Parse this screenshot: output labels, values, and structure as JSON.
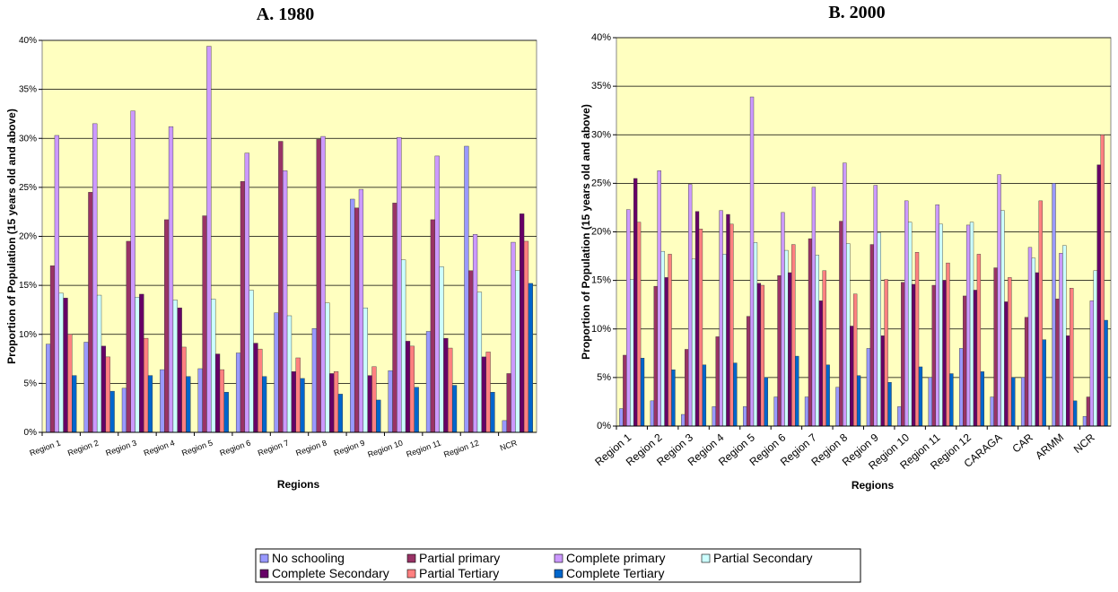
{
  "chart_data": [
    {
      "type": "bar",
      "title": "A. 1980",
      "x_label": "Regions",
      "y_label": "Proportion of Population (15 years old and above)",
      "categories": [
        "Region 1",
        "Region 2",
        "Region 3",
        "Region 4",
        "Region 5",
        "Region 6",
        "Region 7",
        "Region 8",
        "Region 9",
        "Region 10",
        "Region 11",
        "Region 12",
        "NCR"
      ],
      "ylim": [
        0,
        40
      ],
      "yticks": [
        {
          "value": 0,
          "label": "0%"
        },
        {
          "value": 5,
          "label": "5%"
        },
        {
          "value": 10,
          "label": "10%"
        },
        {
          "value": 15,
          "label": "15%"
        },
        {
          "value": 20,
          "label": "20%"
        },
        {
          "value": 25,
          "label": "25%"
        },
        {
          "value": 30,
          "label": "30%"
        },
        {
          "value": 35,
          "label": "35%"
        },
        {
          "value": 40,
          "label": "40%"
        }
      ],
      "grid": true,
      "background": "#ffffc0",
      "series": [
        {
          "name": "No schooling",
          "color": "#9999ff",
          "values": [
            9,
            9.2,
            4.5,
            6.4,
            6.5,
            8.1,
            12.2,
            10.6,
            23.8,
            6.3,
            10.3,
            29.2,
            1.2
          ]
        },
        {
          "name": "Partial primary",
          "color": "#993366",
          "values": [
            17,
            24.5,
            19.5,
            21.7,
            22.1,
            25.6,
            29.7,
            29.9,
            22.9,
            23.4,
            21.7,
            16.5,
            6
          ]
        },
        {
          "name": "Complete primary",
          "color": "#cc99ff",
          "values": [
            30.3,
            31.5,
            32.8,
            31.2,
            39.4,
            28.5,
            26.7,
            30.2,
            24.8,
            30.1,
            28.2,
            20.2,
            19.4
          ]
        },
        {
          "name": "Partial Secondary",
          "color": "#ccffff",
          "values": [
            14.2,
            14,
            13.8,
            13.5,
            13.6,
            14.5,
            11.9,
            13.2,
            12.7,
            17.6,
            16.9,
            14.3,
            16.5
          ]
        },
        {
          "name": "Complete Secondary",
          "color": "#660066",
          "values": [
            13.7,
            8.8,
            14.1,
            12.7,
            8,
            9.1,
            6.2,
            6,
            5.8,
            9.3,
            9.6,
            7.7,
            22.3
          ]
        },
        {
          "name": "Partial Tertiary",
          "color": "#ff8080",
          "values": [
            10,
            7.7,
            9.6,
            8.7,
            6.4,
            8.5,
            7.6,
            6.2,
            6.7,
            8.8,
            8.6,
            8.2,
            19.5
          ]
        },
        {
          "name": "Complete Tertiary",
          "color": "#0066cc",
          "values": [
            5.8,
            4.2,
            5.8,
            5.7,
            4.1,
            5.7,
            5.5,
            3.9,
            3.3,
            4.6,
            4.8,
            4.1,
            15.2
          ]
        }
      ]
    },
    {
      "type": "bar",
      "title": "B. 2000",
      "x_label": "Regions",
      "y_label": "Proportion of Population (15 years old and above)",
      "categories": [
        "Region 1",
        "Region 2",
        "Region 3",
        "Region 4",
        "Region 5",
        "Region 6",
        "Region 7",
        "Region 8",
        "Region 9",
        "Region 10",
        "Region 11",
        "Region 12",
        "CARAGA",
        "CAR",
        "ARMM",
        "NCR"
      ],
      "ylim": [
        0,
        40
      ],
      "yticks": [
        {
          "value": 0,
          "label": "0%"
        },
        {
          "value": 5,
          "label": "5%"
        },
        {
          "value": 10,
          "label": "10%"
        },
        {
          "value": 15,
          "label": "15%"
        },
        {
          "value": 20,
          "label": "20%"
        },
        {
          "value": 25,
          "label": "25%"
        },
        {
          "value": 30,
          "label": "30%"
        },
        {
          "value": 35,
          "label": "35%"
        },
        {
          "value": 40,
          "label": "40%"
        }
      ],
      "grid": true,
      "background": "#ffffc0",
      "series": [
        {
          "values": [
            1.8,
            2.6,
            1.2,
            2,
            2,
            3,
            3,
            4,
            8,
            2,
            5,
            8,
            3,
            5,
            25,
            1
          ]
        },
        {
          "values": [
            7.3,
            14.4,
            7.9,
            9.2,
            11.3,
            15.5,
            19.3,
            21.1,
            18.7,
            14.8,
            14.5,
            13.4,
            16.3,
            11.2,
            13.1,
            3
          ]
        },
        {
          "values": [
            22.3,
            26.3,
            24.9,
            22.2,
            33.9,
            22,
            24.6,
            27.1,
            24.8,
            23.2,
            22.8,
            20.7,
            25.9,
            18.4,
            17.8,
            12.9
          ]
        },
        {
          "values": [
            15.1,
            18,
            17.2,
            17.7,
            18.9,
            18.1,
            17.6,
            18.8,
            19.9,
            21,
            20.8,
            21,
            22.2,
            17.3,
            18.6,
            16
          ]
        },
        {
          "values": [
            25.5,
            15.3,
            22.1,
            21.8,
            14.7,
            15.8,
            12.9,
            10.3,
            9.3,
            14.6,
            15,
            14,
            12.8,
            15.8,
            9.3,
            26.9
          ]
        },
        {
          "values": [
            21,
            17.7,
            20.3,
            20.8,
            14.5,
            18.7,
            16,
            13.6,
            15.1,
            17.9,
            16.8,
            17.7,
            15.3,
            23.2,
            14.2,
            30
          ]
        },
        {
          "values": [
            7,
            5.8,
            6.3,
            6.5,
            5,
            7.2,
            6.3,
            5.2,
            4.5,
            6.1,
            5.4,
            5.6,
            5,
            8.9,
            2.6,
            10.9
          ]
        }
      ]
    }
  ]
}
